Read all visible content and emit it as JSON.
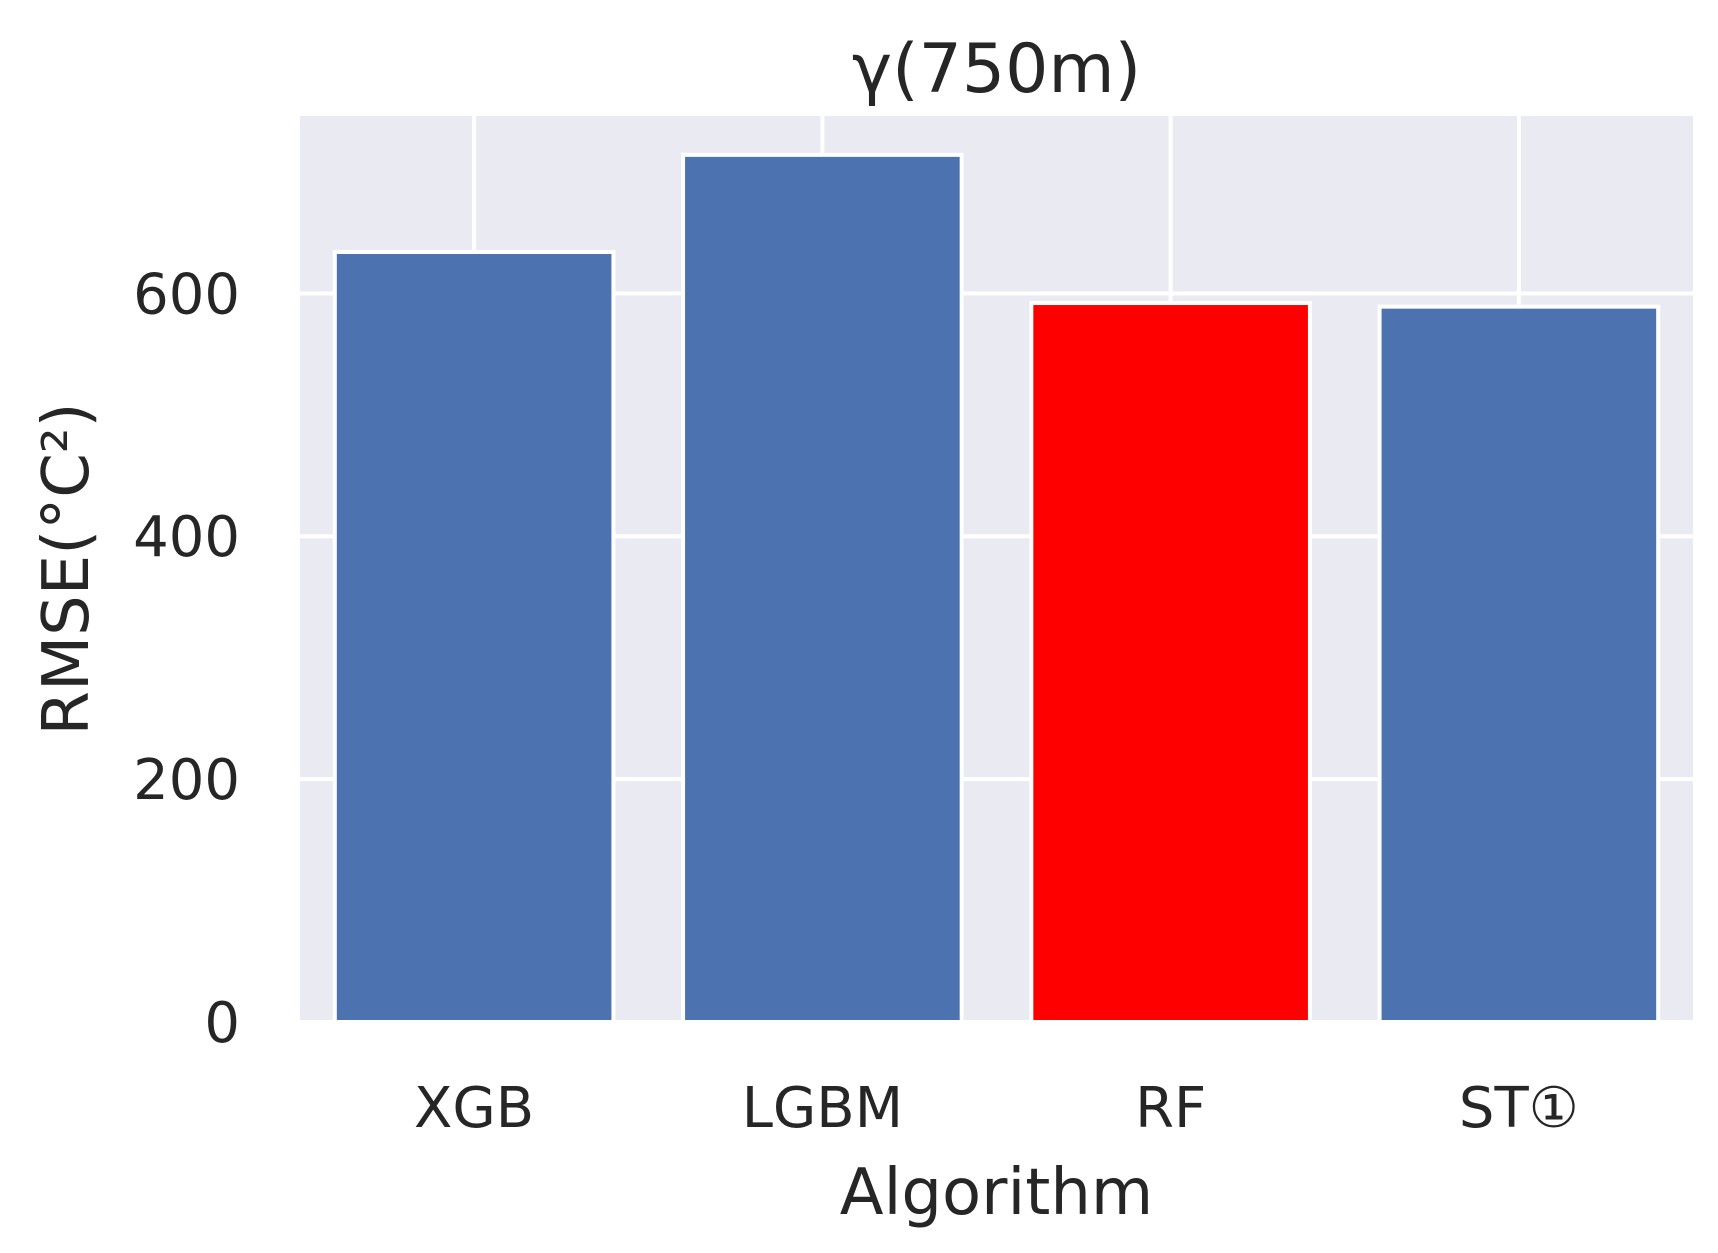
{
  "chart_data": {
    "type": "bar",
    "title": "γ(750m)",
    "xlabel": "Algorithm",
    "ylabel": "RMSE(°C²)",
    "categories": [
      "XGB",
      "LGBM",
      "RF",
      "ST①"
    ],
    "values": [
      634,
      714,
      592,
      589
    ],
    "highlighted_category": "RF",
    "bar_colors": [
      "#4c72b0",
      "#4c72b0",
      "#ff0000",
      "#4c72b0"
    ],
    "ylim": [
      0,
      746
    ],
    "yticks": [
      0,
      200,
      400,
      600
    ],
    "grid": true,
    "legend": "none",
    "style": {
      "plot_background": "#eaeaf2",
      "grid_color": "#ffffff",
      "bar_edge_color": "#ffffff",
      "text_color": "#262626"
    }
  }
}
